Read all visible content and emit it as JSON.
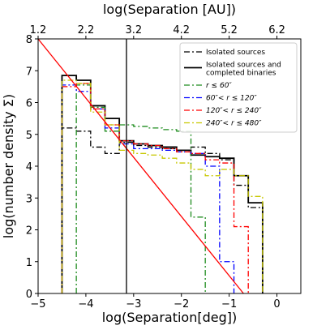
{
  "chart_data": {
    "type": "line",
    "subtype": "step-histogram",
    "xlabel": "log(Separation[deg])",
    "ylabel": "log(number density Σ)",
    "top_xlabel": "log(Separation [AU])",
    "xlim": [
      -5,
      0.5
    ],
    "ylim": [
      0,
      8
    ],
    "xticks": [
      -5,
      -4,
      -3,
      -2,
      -1,
      0
    ],
    "xtick_labels": [
      "−5",
      "−4",
      "−3",
      "−2",
      "−1",
      "0"
    ],
    "yticks": [
      0,
      1,
      2,
      3,
      4,
      5,
      6,
      7,
      8
    ],
    "ytick_labels": [
      "0",
      "1",
      "2",
      "3",
      "4",
      "5",
      "6",
      "7",
      "8"
    ],
    "top_xticks": [
      1.2,
      2.2,
      3.2,
      4.2,
      5.2,
      6.2
    ],
    "top_xtick_labels": [
      "1.2",
      "2.2",
      "3.2",
      "4.2",
      "5.2",
      "6.2"
    ],
    "top_axis_offset": -6.2,
    "grid": false,
    "legend_position": "top-right",
    "bin_edges": [
      -4.5,
      -4.2,
      -3.9,
      -3.6,
      -3.3,
      -3.0,
      -2.7,
      -2.4,
      -2.1,
      -1.8,
      -1.5,
      -1.2,
      -0.9,
      -0.6,
      -0.3
    ],
    "series": [
      {
        "name": "Isolated sources",
        "color": "#000000",
        "dash": "dashdot",
        "width": 1.3,
        "values": [
          5.2,
          5.1,
          4.6,
          4.4,
          4.75,
          4.65,
          4.6,
          4.55,
          4.5,
          4.6,
          4.4,
          4.2,
          3.4,
          2.7
        ]
      },
      {
        "name": "Isolated sources and completed binaries",
        "color": "#000000",
        "dash": "solid",
        "width": 1.8,
        "values": [
          6.85,
          6.7,
          5.9,
          5.5,
          4.8,
          4.7,
          4.65,
          4.6,
          4.5,
          4.35,
          4.3,
          4.25,
          3.7,
          2.85
        ]
      },
      {
        "name": "r ≤ 60″",
        "color": "#1f8c1f",
        "dash": "dashdot",
        "width": 1.3,
        "values": [
          null,
          6.55,
          5.85,
          5.1,
          5.3,
          5.25,
          5.2,
          5.15,
          5.1,
          2.4,
          null,
          null,
          null,
          null
        ]
      },
      {
        "name": "60″< r ≤ 120″",
        "color": "#0000ff",
        "dash": "dashdot",
        "width": 1.3,
        "values": [
          6.55,
          6.35,
          5.8,
          5.2,
          4.7,
          4.55,
          4.55,
          4.5,
          4.45,
          4.4,
          4.0,
          1.0,
          null,
          null
        ]
      },
      {
        "name": "120″< r ≤ 240″",
        "color": "#ff0000",
        "dash": "dashdot",
        "width": 1.3,
        "values": [
          6.5,
          6.6,
          5.8,
          5.3,
          4.8,
          4.7,
          4.65,
          4.55,
          4.45,
          4.4,
          4.2,
          4.1,
          2.1,
          null
        ]
      },
      {
        "name": "240″< r ≤ 480″",
        "color": "#c8c800",
        "dash": "dashdot",
        "width": 1.3,
        "values": [
          6.7,
          6.6,
          5.7,
          5.3,
          4.5,
          4.4,
          4.35,
          4.25,
          4.1,
          3.9,
          3.7,
          3.9,
          3.7,
          3.05
        ]
      }
    ],
    "fit_line": {
      "color": "#ff0000",
      "x": [
        -5.0,
        -0.7
      ],
      "y": [
        8.0,
        0.0
      ]
    },
    "vertical_line": {
      "color": "#000000",
      "x": -3.15
    }
  }
}
